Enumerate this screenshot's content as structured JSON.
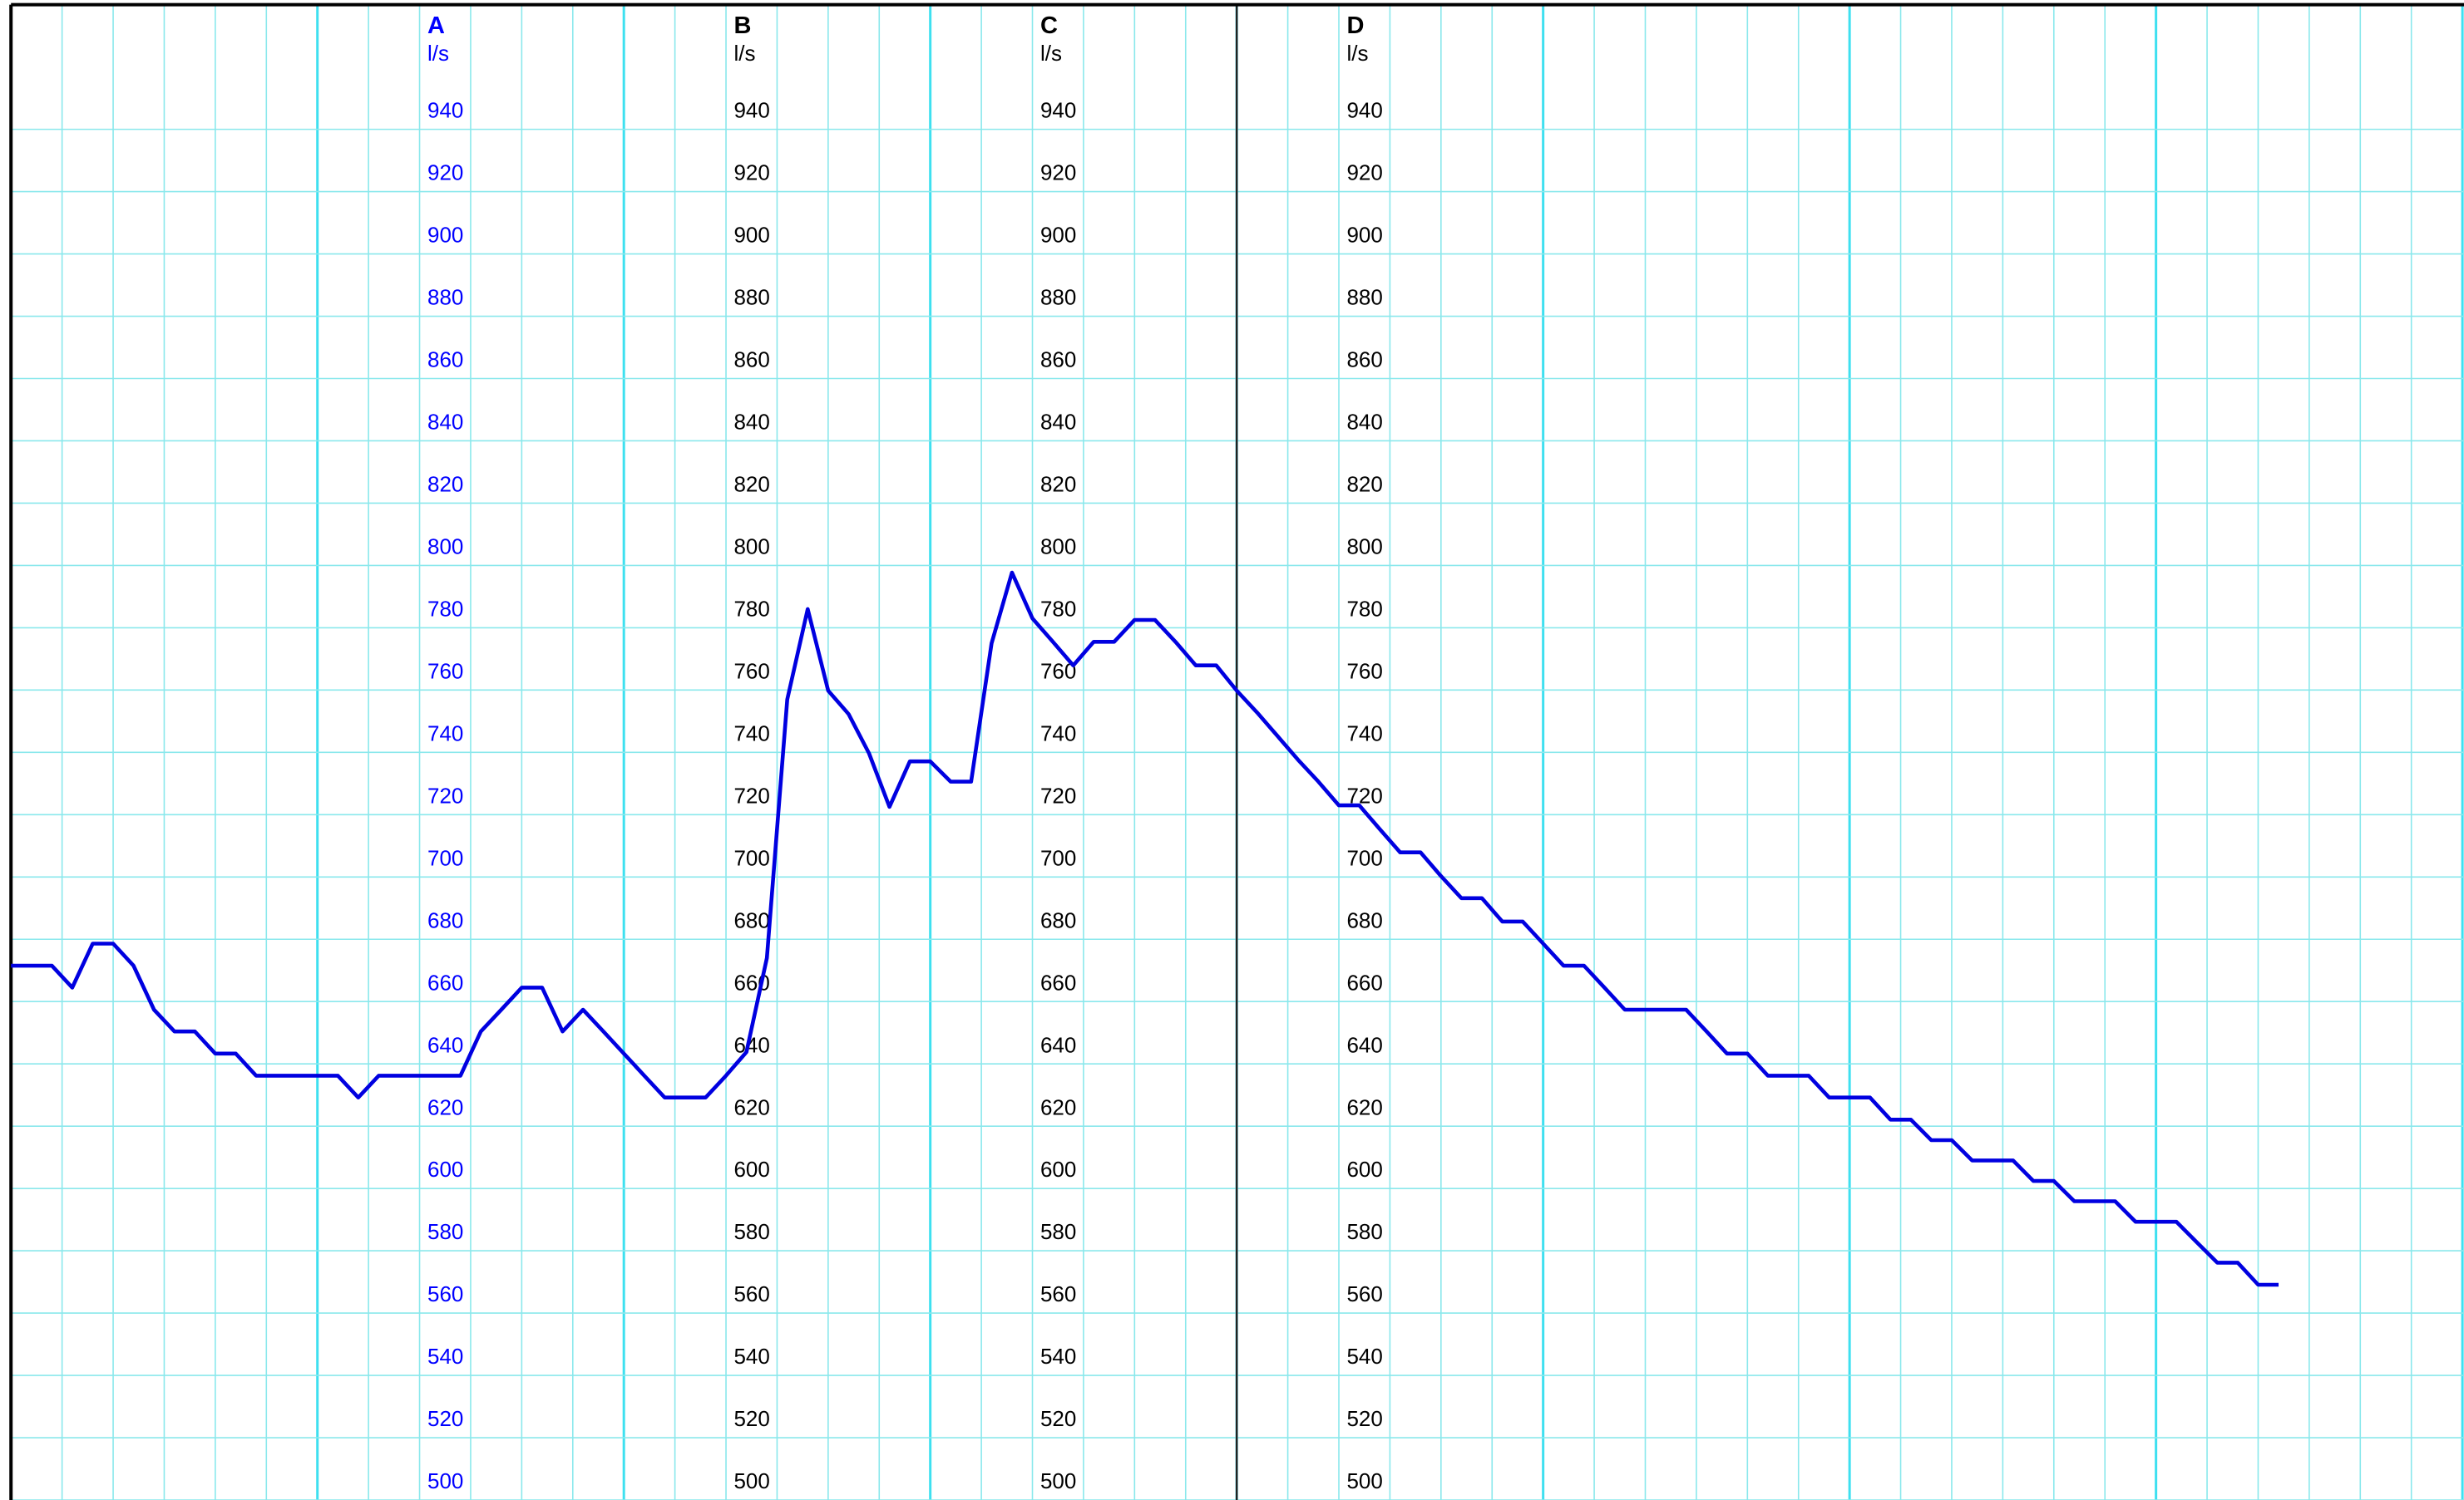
{
  "chart_data": {
    "type": "line",
    "axes": [
      {
        "name": "A",
        "unit": "l/s",
        "color": "#0000ff"
      },
      {
        "name": "B",
        "unit": "l/s",
        "color": "#000000"
      },
      {
        "name": "C",
        "unit": "l/s",
        "color": "#000000"
      },
      {
        "name": "D",
        "unit": "l/s",
        "color": "#000000"
      }
    ],
    "ylim": [
      500,
      980
    ],
    "yticks": [
      500,
      520,
      540,
      560,
      580,
      600,
      620,
      640,
      660,
      680,
      700,
      720,
      740,
      760,
      780,
      800,
      820,
      840,
      860,
      880,
      900,
      920,
      940
    ],
    "grid": true,
    "series": [
      {
        "color": "#0000e0",
        "values": [
          671.5,
          671.5,
          671.5,
          664.5,
          678.6,
          678.6,
          671.5,
          657.4,
          650.4,
          650.4,
          643.3,
          643.3,
          636.2,
          636.2,
          636.2,
          636.2,
          636.2,
          629.2,
          636.2,
          636.2,
          636.2,
          636.2,
          636.2,
          650.4,
          657.4,
          664.5,
          664.5,
          650.4,
          657.4,
          650.4,
          643.3,
          636.2,
          629.2,
          629.2,
          629.2,
          636.2,
          643.8,
          674,
          757,
          786,
          759.8,
          752.3,
          739.7,
          722.5,
          737.1,
          737.1,
          730.6,
          730.6,
          775,
          797.7,
          783,
          775.5,
          767.9,
          775.5,
          775.5,
          782.5,
          782.5,
          775.5,
          767.9,
          767.9,
          759.8,
          752.8,
          745.2,
          737.6,
          730.6,
          723,
          723,
          715.4,
          707.9,
          707.9,
          700.3,
          693.2,
          693.2,
          685.7,
          685.7,
          678.6,
          671.5,
          671.5,
          664.5,
          657.4,
          657.4,
          657.4,
          657.4,
          650.4,
          643.3,
          643.3,
          636.2,
          636.2,
          636.2,
          629.2,
          629.2,
          629.2,
          622.1,
          622.1,
          615.5,
          615.5,
          609,
          609,
          609,
          602.4,
          602.4,
          595.9,
          595.9,
          595.9,
          589.3,
          589.3,
          589.3,
          582.7,
          576.2,
          576.2,
          569.1,
          569.1
        ]
      }
    ]
  }
}
